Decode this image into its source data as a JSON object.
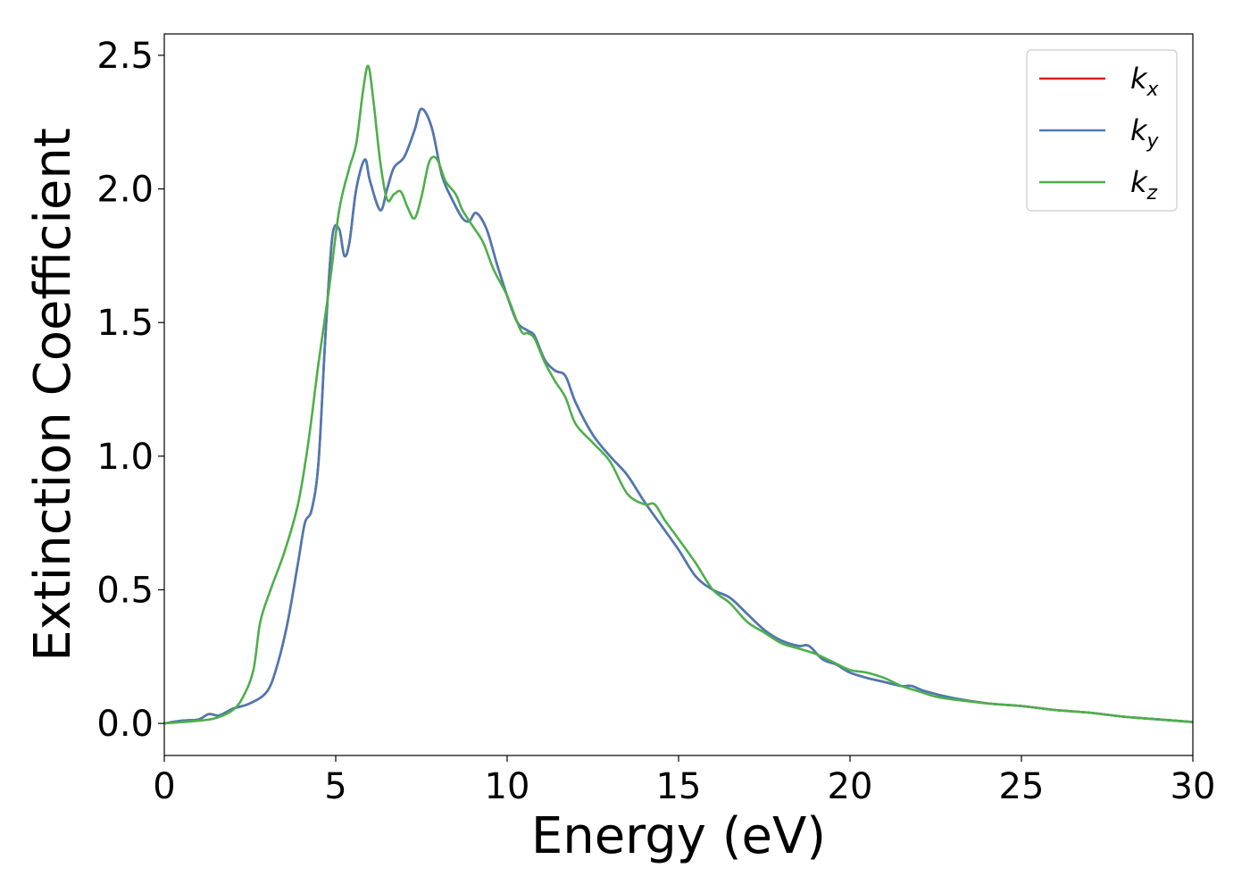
{
  "chart_data": {
    "type": "line",
    "xlabel": "Energy (eV)",
    "ylabel": "Extinction Coefficient",
    "xlim": [
      0,
      30
    ],
    "ylim": [
      -0.12,
      2.58
    ],
    "xticks": [
      0,
      5,
      10,
      15,
      20,
      25,
      30
    ],
    "xtick_labels": [
      "0",
      "5",
      "10",
      "15",
      "20",
      "25",
      "30"
    ],
    "yticks": [
      0.0,
      0.5,
      1.0,
      1.5,
      2.0,
      2.5
    ],
    "ytick_labels": [
      "0.0",
      "0.5",
      "1.0",
      "1.5",
      "2.0",
      "2.5"
    ],
    "grid": false,
    "legend_position": "top-right",
    "series": [
      {
        "name": "k_x",
        "label_base": "k",
        "label_sub": "x",
        "color": "#e41a1c",
        "x": [
          0,
          0.5,
          1.0,
          1.3,
          1.6,
          2.0,
          2.5,
          3.0,
          3.3,
          3.6,
          3.9,
          4.1,
          4.3,
          4.5,
          4.7,
          4.9,
          5.1,
          5.25,
          5.4,
          5.6,
          5.85,
          6.0,
          6.3,
          6.5,
          6.7,
          7.0,
          7.3,
          7.5,
          7.8,
          8.1,
          8.4,
          8.7,
          8.9,
          9.1,
          9.4,
          9.7,
          10.0,
          10.3,
          10.6,
          10.8,
          11.1,
          11.4,
          11.7,
          12.0,
          12.5,
          13.0,
          13.5,
          14.0,
          14.5,
          15.0,
          15.5,
          16.0,
          16.5,
          17.0,
          17.5,
          18.0,
          18.5,
          18.8,
          19.2,
          19.6,
          20.0,
          20.5,
          21.0,
          21.5,
          21.8,
          22.2,
          23.0,
          24.0,
          25.0,
          26.0,
          27.0,
          28.0,
          29.0,
          30.0
        ],
        "y": [
          0.0,
          0.01,
          0.015,
          0.035,
          0.03,
          0.055,
          0.075,
          0.12,
          0.22,
          0.38,
          0.6,
          0.75,
          0.8,
          0.98,
          1.45,
          1.82,
          1.85,
          1.75,
          1.8,
          2.0,
          2.11,
          2.03,
          1.92,
          2.0,
          2.08,
          2.12,
          2.22,
          2.3,
          2.23,
          2.05,
          1.96,
          1.89,
          1.88,
          1.91,
          1.85,
          1.72,
          1.6,
          1.5,
          1.47,
          1.45,
          1.36,
          1.32,
          1.3,
          1.2,
          1.08,
          1.0,
          0.93,
          0.83,
          0.74,
          0.65,
          0.55,
          0.5,
          0.47,
          0.41,
          0.35,
          0.31,
          0.29,
          0.29,
          0.24,
          0.22,
          0.19,
          0.17,
          0.155,
          0.14,
          0.14,
          0.12,
          0.095,
          0.075,
          0.065,
          0.05,
          0.04,
          0.025,
          0.015,
          0.005
        ]
      },
      {
        "name": "k_y",
        "label_base": "k",
        "label_sub": "y",
        "color": "#4a7ab4",
        "x": [
          0,
          0.5,
          1.0,
          1.3,
          1.6,
          2.0,
          2.5,
          3.0,
          3.3,
          3.6,
          3.9,
          4.1,
          4.3,
          4.5,
          4.7,
          4.9,
          5.1,
          5.25,
          5.4,
          5.6,
          5.85,
          6.0,
          6.3,
          6.5,
          6.7,
          7.0,
          7.3,
          7.5,
          7.8,
          8.1,
          8.4,
          8.7,
          8.9,
          9.1,
          9.4,
          9.7,
          10.0,
          10.3,
          10.6,
          10.8,
          11.1,
          11.4,
          11.7,
          12.0,
          12.5,
          13.0,
          13.5,
          14.0,
          14.5,
          15.0,
          15.5,
          16.0,
          16.5,
          17.0,
          17.5,
          18.0,
          18.5,
          18.8,
          19.2,
          19.6,
          20.0,
          20.5,
          21.0,
          21.5,
          21.8,
          22.2,
          23.0,
          24.0,
          25.0,
          26.0,
          27.0,
          28.0,
          29.0,
          30.0
        ],
        "y": [
          0.0,
          0.01,
          0.015,
          0.035,
          0.03,
          0.055,
          0.075,
          0.12,
          0.22,
          0.38,
          0.6,
          0.75,
          0.8,
          0.98,
          1.45,
          1.82,
          1.85,
          1.75,
          1.8,
          2.0,
          2.11,
          2.03,
          1.92,
          2.0,
          2.08,
          2.12,
          2.22,
          2.3,
          2.23,
          2.05,
          1.96,
          1.89,
          1.88,
          1.91,
          1.85,
          1.72,
          1.6,
          1.5,
          1.47,
          1.45,
          1.36,
          1.32,
          1.3,
          1.2,
          1.08,
          1.0,
          0.93,
          0.83,
          0.74,
          0.65,
          0.55,
          0.5,
          0.47,
          0.41,
          0.35,
          0.31,
          0.29,
          0.29,
          0.24,
          0.22,
          0.19,
          0.17,
          0.155,
          0.14,
          0.14,
          0.12,
          0.095,
          0.075,
          0.065,
          0.05,
          0.04,
          0.025,
          0.015,
          0.005
        ]
      },
      {
        "name": "k_z",
        "label_base": "k",
        "label_sub": "z",
        "color": "#4daf4a",
        "x": [
          0,
          0.5,
          1.0,
          1.5,
          2.0,
          2.3,
          2.6,
          2.8,
          3.1,
          3.5,
          3.9,
          4.2,
          4.5,
          4.8,
          5.1,
          5.4,
          5.6,
          5.8,
          5.95,
          6.1,
          6.3,
          6.5,
          6.7,
          6.9,
          7.1,
          7.3,
          7.5,
          7.7,
          7.85,
          8.0,
          8.2,
          8.5,
          8.7,
          9.0,
          9.3,
          9.6,
          10.0,
          10.4,
          10.6,
          10.8,
          11.1,
          11.4,
          11.7,
          12.0,
          12.5,
          13.0,
          13.5,
          14.0,
          14.3,
          14.6,
          15.0,
          15.5,
          16.0,
          16.5,
          17.0,
          17.5,
          18.0,
          18.5,
          19.0,
          19.5,
          20.0,
          20.5,
          21.0,
          21.5,
          22.0,
          22.5,
          23.0,
          24.0,
          25.0,
          26.0,
          27.0,
          28.0,
          29.0,
          30.0
        ],
        "y": [
          0.0,
          0.005,
          0.01,
          0.02,
          0.05,
          0.1,
          0.2,
          0.38,
          0.5,
          0.64,
          0.82,
          1.05,
          1.35,
          1.62,
          1.92,
          2.08,
          2.17,
          2.37,
          2.46,
          2.33,
          2.1,
          1.96,
          1.98,
          1.99,
          1.93,
          1.89,
          1.97,
          2.09,
          2.12,
          2.1,
          2.03,
          1.98,
          1.92,
          1.86,
          1.8,
          1.7,
          1.6,
          1.47,
          1.46,
          1.44,
          1.35,
          1.28,
          1.22,
          1.12,
          1.05,
          0.98,
          0.86,
          0.82,
          0.82,
          0.76,
          0.69,
          0.6,
          0.5,
          0.45,
          0.38,
          0.34,
          0.3,
          0.28,
          0.26,
          0.23,
          0.2,
          0.19,
          0.17,
          0.14,
          0.12,
          0.1,
          0.09,
          0.075,
          0.065,
          0.05,
          0.04,
          0.025,
          0.015,
          0.005
        ]
      }
    ]
  }
}
